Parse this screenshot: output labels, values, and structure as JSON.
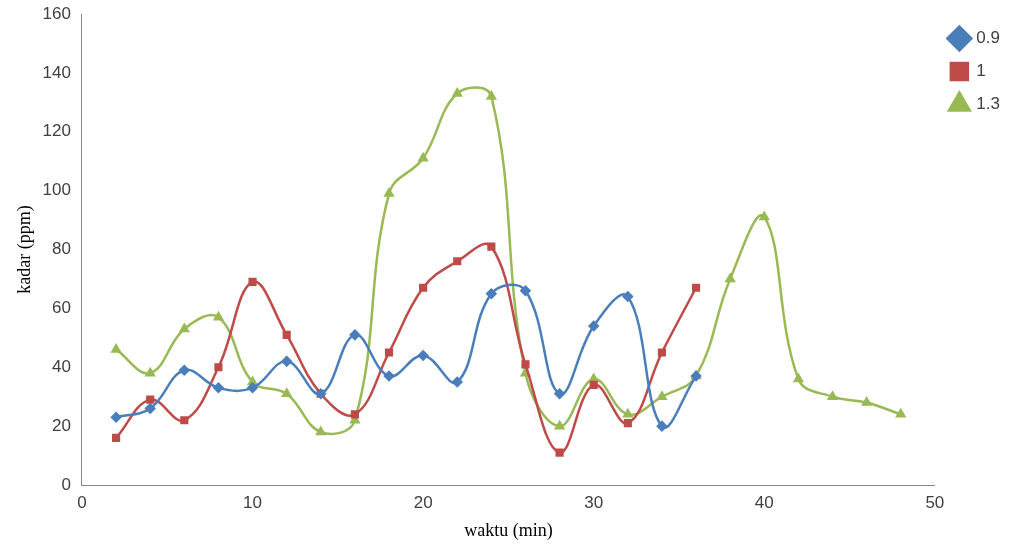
{
  "chart_data": {
    "type": "line",
    "x_label": "waktu (min)",
    "y_label": "kadar (ppm)",
    "x": [
      2,
      4,
      6,
      8,
      10,
      12,
      14,
      16,
      18,
      20,
      22,
      24,
      26,
      28,
      30,
      32,
      34,
      36,
      38,
      40,
      42,
      44,
      46,
      48
    ],
    "series": [
      {
        "name": "0.9",
        "color": "#4a7ebb",
        "marker": "diamond",
        "values": [
          23,
          26,
          39,
          33,
          33,
          42,
          31,
          51,
          37,
          44,
          35,
          65,
          66,
          31,
          54,
          64,
          20,
          37,
          null,
          null,
          null,
          null,
          null,
          null
        ]
      },
      {
        "name": "1",
        "color": "#be4b48",
        "marker": "square",
        "values": [
          16,
          29,
          22,
          40,
          69,
          51,
          31,
          24,
          45,
          67,
          76,
          81,
          41,
          11,
          34,
          21,
          45,
          67,
          null,
          null,
          null,
          null,
          null,
          null
        ]
      },
      {
        "name": "1.3",
        "color": "#98b954",
        "marker": "triangle",
        "values": [
          46,
          38,
          53,
          57,
          35,
          31,
          18,
          22,
          99,
          111,
          133,
          132,
          38,
          20,
          36,
          24,
          30,
          37,
          70,
          91,
          36,
          30,
          28,
          24
        ]
      }
    ],
    "xlim": [
      0,
      50
    ],
    "xticks": [
      0,
      10,
      20,
      30,
      40,
      50
    ],
    "ylim": [
      0,
      160
    ],
    "yticks": [
      0,
      20,
      40,
      60,
      80,
      100,
      120,
      140,
      160
    ],
    "grid": false,
    "legend": "right"
  }
}
